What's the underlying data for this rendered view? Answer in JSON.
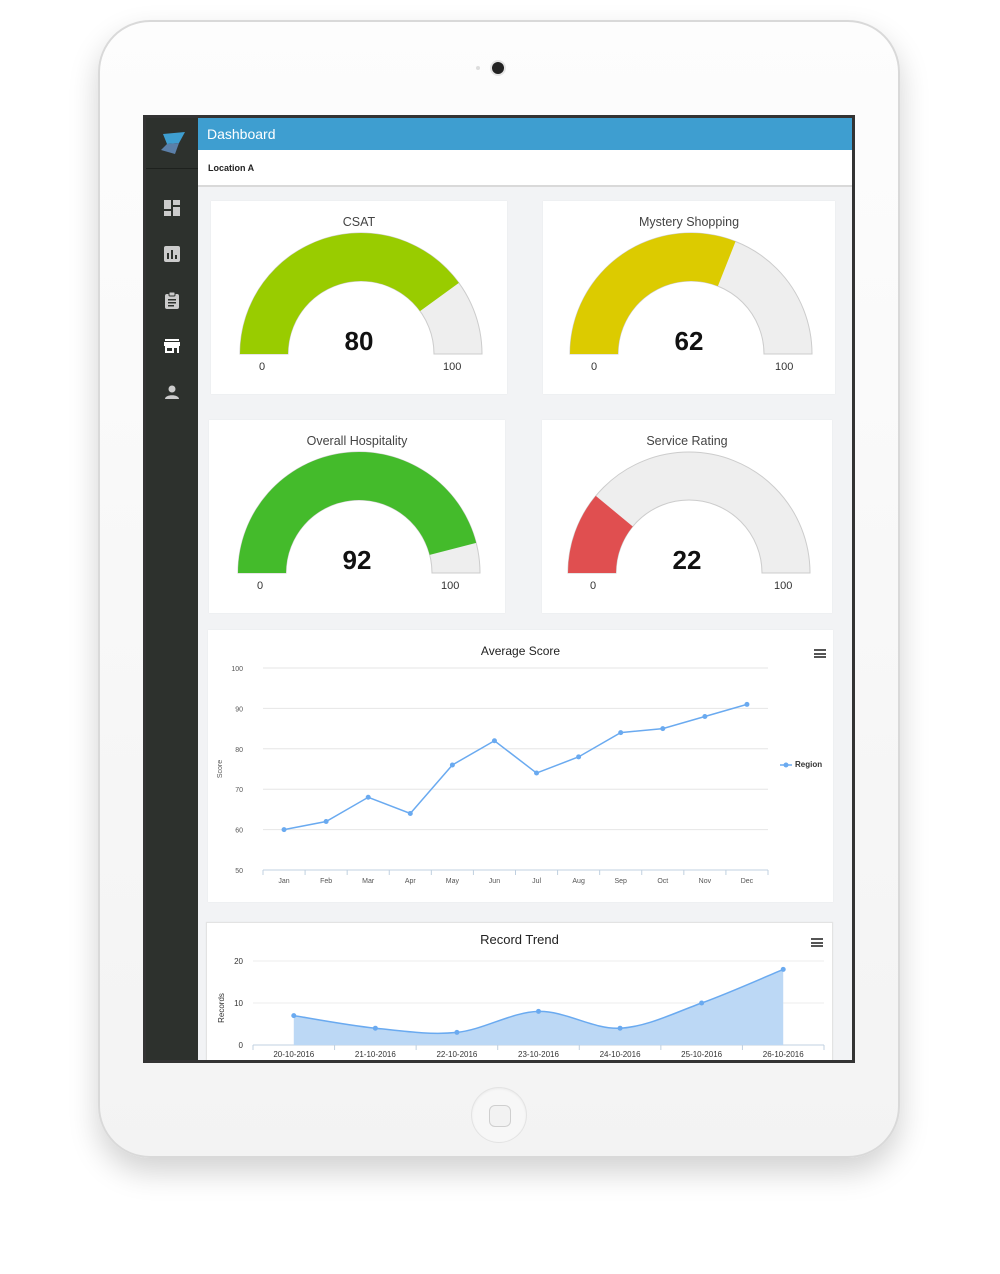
{
  "header": {
    "title": "Dashboard",
    "location": "Location A"
  },
  "sidebar": {
    "items": [
      {
        "icon": "dashboard-icon",
        "active": false
      },
      {
        "icon": "bar-chart-icon",
        "active": false
      },
      {
        "icon": "clipboard-icon",
        "active": false
      },
      {
        "icon": "store-icon",
        "active": true
      },
      {
        "icon": "user-icon",
        "active": false
      }
    ]
  },
  "gauges": [
    {
      "title": "CSAT",
      "value": "80",
      "min": "0",
      "max": "100",
      "color": "#99cc00"
    },
    {
      "title": "Mystery Shopping",
      "value": "62",
      "min": "0",
      "max": "100",
      "color": "#dccb00"
    },
    {
      "title": "Overall Hospitality",
      "value": "92",
      "min": "0",
      "max": "100",
      "color": "#44bb2b"
    },
    {
      "title": "Service Rating",
      "value": "22",
      "min": "0",
      "max": "100",
      "color": "#e04f50"
    }
  ],
  "chart_data": [
    {
      "type": "line",
      "title": "Average Score",
      "xlabel": "",
      "ylabel": "Score",
      "categories": [
        "Jan",
        "Feb",
        "Mar",
        "Apr",
        "May",
        "Jun",
        "Jul",
        "Aug",
        "Sep",
        "Oct",
        "Nov",
        "Dec"
      ],
      "series": [
        {
          "name": "Region",
          "values": [
            60,
            62,
            68,
            64,
            76,
            82,
            74,
            78,
            84,
            85,
            88,
            91
          ],
          "color": "#6aaaf0"
        }
      ],
      "ylim": [
        50,
        100
      ],
      "yticks": [
        50,
        60,
        70,
        80,
        90,
        100
      ],
      "grid": true,
      "legend_position": "right"
    },
    {
      "type": "area",
      "title": "Record Trend",
      "xlabel": "",
      "ylabel": "Records",
      "categories": [
        "20-10-2016",
        "21-10-2016",
        "22-10-2016",
        "23-10-2016",
        "24-10-2016",
        "25-10-2016",
        "26-10-2016"
      ],
      "series": [
        {
          "name": "Records",
          "values": [
            7,
            4,
            3,
            8,
            4,
            10,
            18
          ],
          "color": "#6aaaf0"
        }
      ],
      "ylim": [
        0,
        20
      ],
      "yticks": [
        0,
        10,
        20
      ],
      "grid": true
    }
  ]
}
